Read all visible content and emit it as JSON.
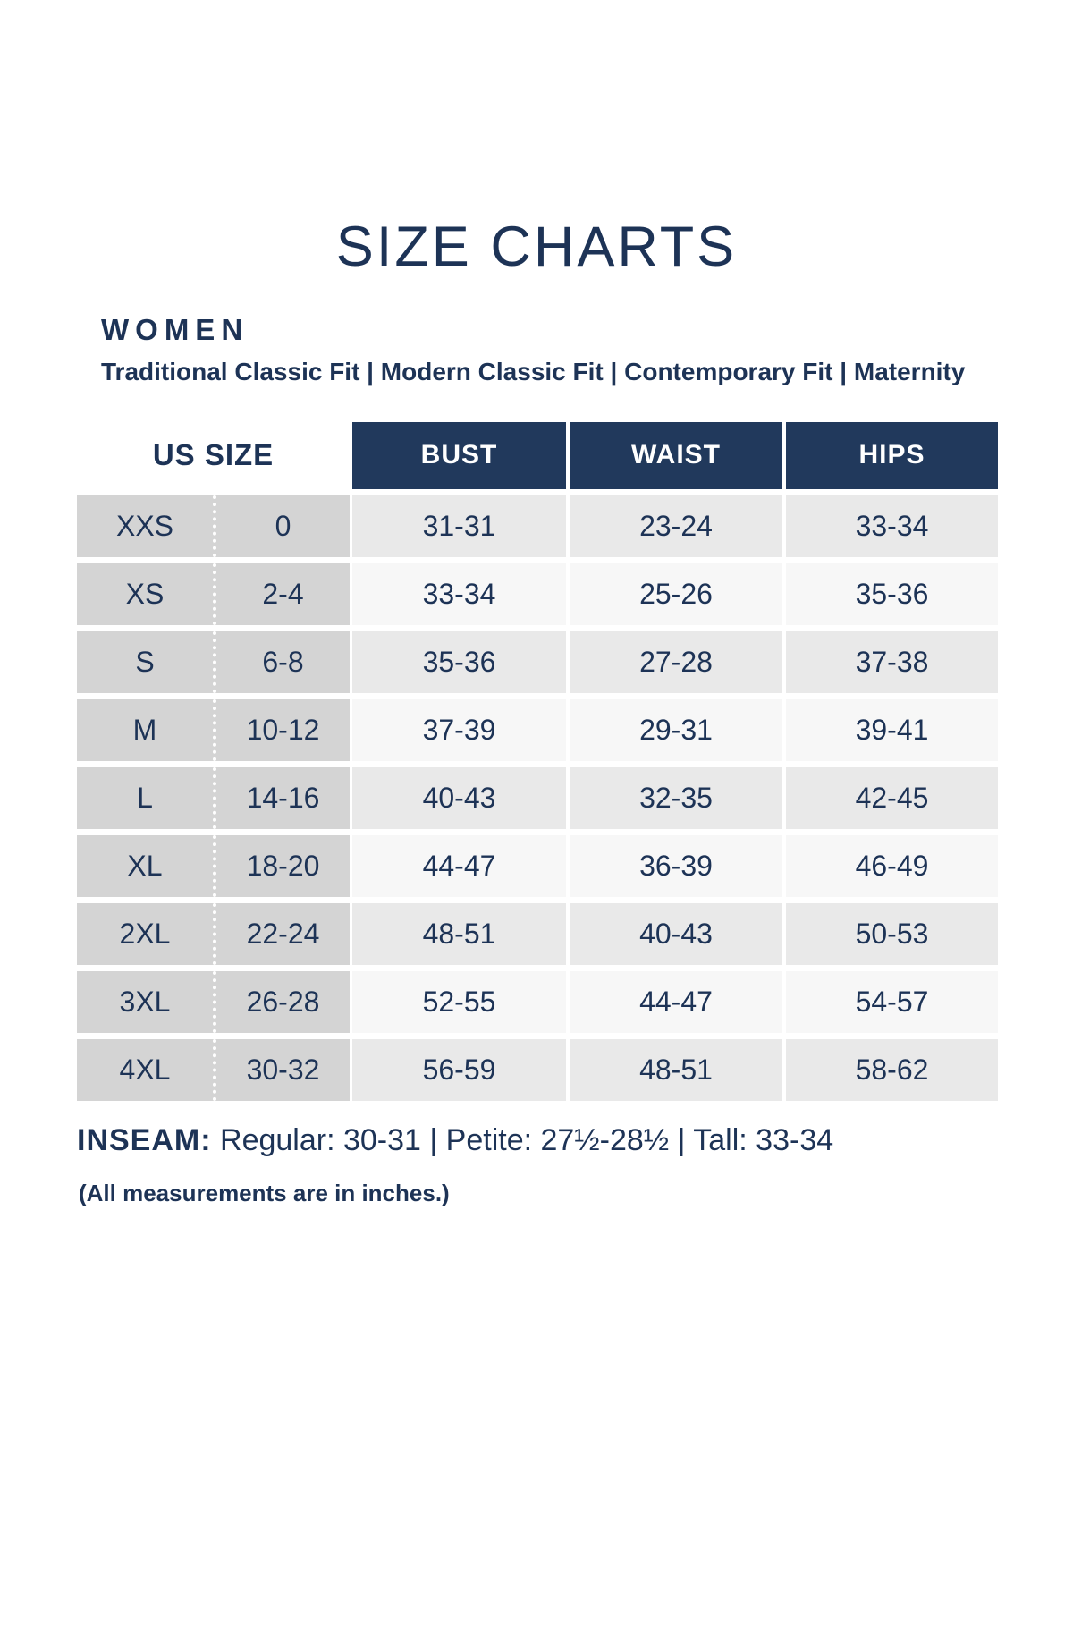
{
  "title": "SIZE CHARTS",
  "section": {
    "heading": "WOMEN",
    "fits": [
      "Traditional Classic Fit",
      "Modern Classic Fit",
      "Contemporary Fit",
      "Maternity"
    ],
    "fit_separator": "  |  "
  },
  "table": {
    "us_size_header": "US SIZE",
    "measure_headers": [
      "BUST",
      "WAIST",
      "HIPS"
    ],
    "rows": [
      {
        "size": "XXS",
        "us": "0",
        "bust": "31-31",
        "waist": "23-24",
        "hips": "33-34"
      },
      {
        "size": "XS",
        "us": "2-4",
        "bust": "33-34",
        "waist": "25-26",
        "hips": "35-36"
      },
      {
        "size": "S",
        "us": "6-8",
        "bust": "35-36",
        "waist": "27-28",
        "hips": "37-38"
      },
      {
        "size": "M",
        "us": "10-12",
        "bust": "37-39",
        "waist": "29-31",
        "hips": "39-41"
      },
      {
        "size": "L",
        "us": "14-16",
        "bust": "40-43",
        "waist": "32-35",
        "hips": "42-45"
      },
      {
        "size": "XL",
        "us": "18-20",
        "bust": "44-47",
        "waist": "36-39",
        "hips": "46-49"
      },
      {
        "size": "2XL",
        "us": "22-24",
        "bust": "48-51",
        "waist": "40-43",
        "hips": "50-53"
      },
      {
        "size": "3XL",
        "us": "26-28",
        "bust": "52-55",
        "waist": "44-47",
        "hips": "54-57"
      },
      {
        "size": "4XL",
        "us": "30-32",
        "bust": "56-59",
        "waist": "48-51",
        "hips": "58-62"
      }
    ]
  },
  "footer": {
    "inseam_label": "INSEAM:",
    "inseam_items": [
      "Regular: 30-31",
      "Petite: 27½-28½",
      "Tall: 33-34"
    ],
    "inseam_separator": "  |  ",
    "note": "(All measurements are in inches.)"
  },
  "colors": {
    "navy_header_bg": "#21395c",
    "text_navy": "#1d3356",
    "size_column_gray": "#d4d4d4",
    "row_gray": "#e9e9e9",
    "row_light": "#f7f7f7",
    "background": "#ffffff"
  },
  "chart_data": {
    "type": "table",
    "title": "SIZE CHARTS",
    "section": "WOMEN",
    "fit_categories": [
      "Traditional Classic Fit",
      "Modern Classic Fit",
      "Contemporary Fit",
      "Maternity"
    ],
    "columns": [
      "Size",
      "US Size",
      "Bust",
      "Waist",
      "Hips"
    ],
    "rows": [
      [
        "XXS",
        "0",
        "31-31",
        "23-24",
        "33-34"
      ],
      [
        "XS",
        "2-4",
        "33-34",
        "25-26",
        "35-36"
      ],
      [
        "S",
        "6-8",
        "35-36",
        "27-28",
        "37-38"
      ],
      [
        "M",
        "10-12",
        "37-39",
        "29-31",
        "39-41"
      ],
      [
        "L",
        "14-16",
        "40-43",
        "32-35",
        "42-45"
      ],
      [
        "XL",
        "18-20",
        "44-47",
        "36-39",
        "46-49"
      ],
      [
        "2XL",
        "22-24",
        "48-51",
        "40-43",
        "50-53"
      ],
      [
        "3XL",
        "26-28",
        "52-55",
        "44-47",
        "54-57"
      ],
      [
        "4XL",
        "30-32",
        "56-59",
        "48-51",
        "58-62"
      ]
    ],
    "inseam": {
      "Regular": "30-31",
      "Petite": "27½-28½",
      "Tall": "33-34"
    },
    "note": "(All measurements are in inches.)",
    "units": "inches"
  }
}
